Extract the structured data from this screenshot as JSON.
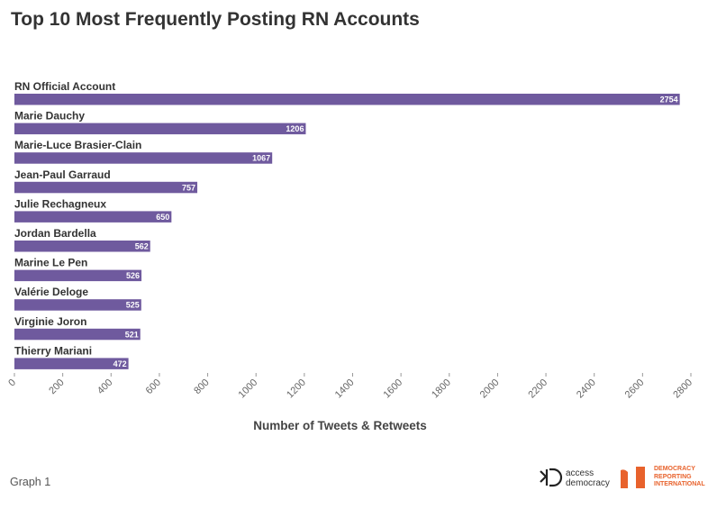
{
  "chart_data": {
    "type": "bar",
    "orientation": "horizontal",
    "title": "Top 10 Most Frequently Posting RN Accounts",
    "categories": [
      "RN Official Account",
      "Marie Dauchy",
      "Marie-Luce Brasier-Clain",
      "Jean-Paul Garraud",
      "Julie Rechagneux",
      "Jordan Bardella",
      "Marine Le Pen",
      "Valérie Deloge",
      "Virginie Joron",
      "Thierry Mariani"
    ],
    "values": [
      2754,
      1206,
      1067,
      757,
      650,
      562,
      526,
      525,
      521,
      472
    ],
    "value_labels": [
      "2754",
      "1206",
      "1067",
      "757",
      "650",
      "562",
      "526",
      "525",
      "521",
      "472"
    ],
    "xlabel": "Number of Tweets & Retweets",
    "ylabel": "",
    "xlim": [
      0,
      2800
    ],
    "xticks": [
      "0",
      "200",
      "400",
      "600",
      "800",
      "1000",
      "1200",
      "1400",
      "1600",
      "1800",
      "2000",
      "2200",
      "2400",
      "2600",
      "2800"
    ],
    "bar_color": "#6f5a9e",
    "legend": "none",
    "grid": false
  },
  "footer": {
    "note": "Graph 1",
    "logo_ad_line1": "access",
    "logo_ad_line2": "democracy",
    "logo_dri_line1": "DEMOCRACY",
    "logo_dri_line2": "REPORTING",
    "logo_dri_line3": "INTERNATIONAL",
    "dri_color": "#e8622c"
  }
}
